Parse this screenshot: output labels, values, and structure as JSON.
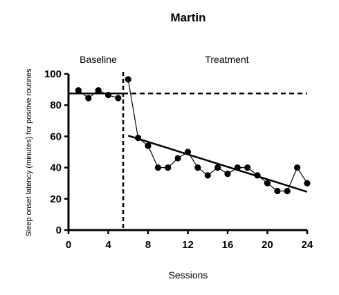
{
  "chart_data": {
    "type": "line",
    "title": "Martin",
    "xlabel": "Sessions",
    "ylabel": "Sleep onset latency (minutes) for positive routines",
    "xlim": [
      0,
      24
    ],
    "ylim": [
      0,
      100
    ],
    "xticks": [
      "0",
      "4",
      "8",
      "12",
      "16",
      "20",
      "24"
    ],
    "yticks": [
      "0",
      "20",
      "40",
      "60",
      "80",
      "100"
    ],
    "grid": false,
    "phase_labels": [
      "Baseline",
      "Treatment"
    ],
    "phase_change_x": 5.5,
    "series": [
      {
        "x": [
          1,
          2,
          3,
          4,
          5,
          6,
          7,
          8,
          9,
          10,
          11,
          12,
          13,
          14,
          15,
          16,
          17,
          18,
          19,
          20,
          21,
          22,
          23,
          24
        ],
        "y": [
          89.5,
          84.5,
          89.5,
          86.5,
          84.5,
          96.5,
          59,
          54,
          40,
          40,
          46,
          50,
          40,
          35,
          40,
          36,
          40,
          40,
          35,
          30,
          25,
          25,
          40,
          30
        ]
      }
    ],
    "baseline_trend": {
      "x": [
        0,
        5.5
      ],
      "y": [
        87.5,
        87.5
      ]
    },
    "baseline_level_extension": {
      "x": [
        5.5,
        24
      ],
      "y": [
        87.5,
        87.5
      ]
    },
    "treatment_trend": {
      "x": [
        6,
        24
      ],
      "y": [
        60.5,
        24.5
      ]
    }
  }
}
